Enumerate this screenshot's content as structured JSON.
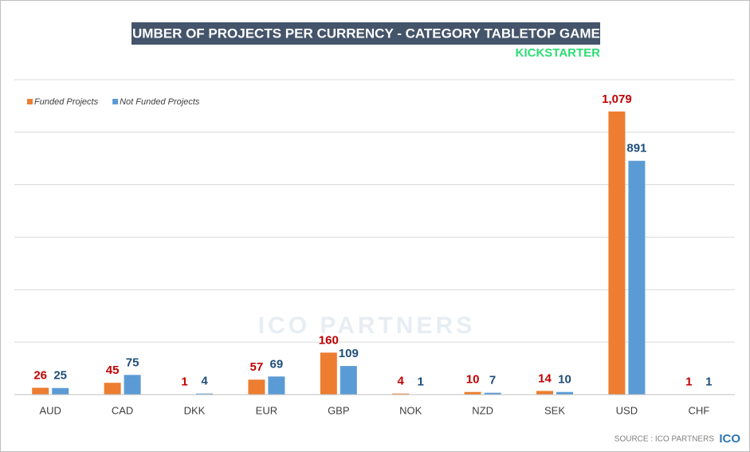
{
  "chart_data": {
    "type": "bar",
    "title": "NUMBER OF PROJECTS PER CURRENCY - CATEGORY TABLETOP GAMES",
    "subtitle": "KICKSTARTER",
    "watermark": "ICO PARTNERS",
    "source": "SOURCE : ICO PARTNERS",
    "logo": "ICO",
    "categories": [
      "AUD",
      "CAD",
      "DKK",
      "EUR",
      "GBP",
      "NOK",
      "NZD",
      "SEK",
      "USD",
      "CHF"
    ],
    "series": [
      {
        "name": "Funded Projects",
        "color": "#ed7d31",
        "label_color": "#c00000",
        "values": [
          26,
          45,
          1,
          57,
          160,
          4,
          10,
          14,
          1079,
          1
        ],
        "value_labels": [
          "26",
          "45",
          "1",
          "57",
          "160",
          "4",
          "10",
          "14",
          "1,079",
          "1"
        ]
      },
      {
        "name": "Not Funded Projects",
        "color": "#5b9bd5",
        "label_color": "#1f4e79",
        "values": [
          25,
          75,
          4,
          69,
          109,
          1,
          7,
          10,
          891,
          1
        ]
      }
    ],
    "ylim": [
      0,
      1200
    ],
    "yticks": [
      0,
      200,
      400,
      600,
      800,
      1000,
      1200
    ],
    "grid": true,
    "legend": "top-left"
  }
}
